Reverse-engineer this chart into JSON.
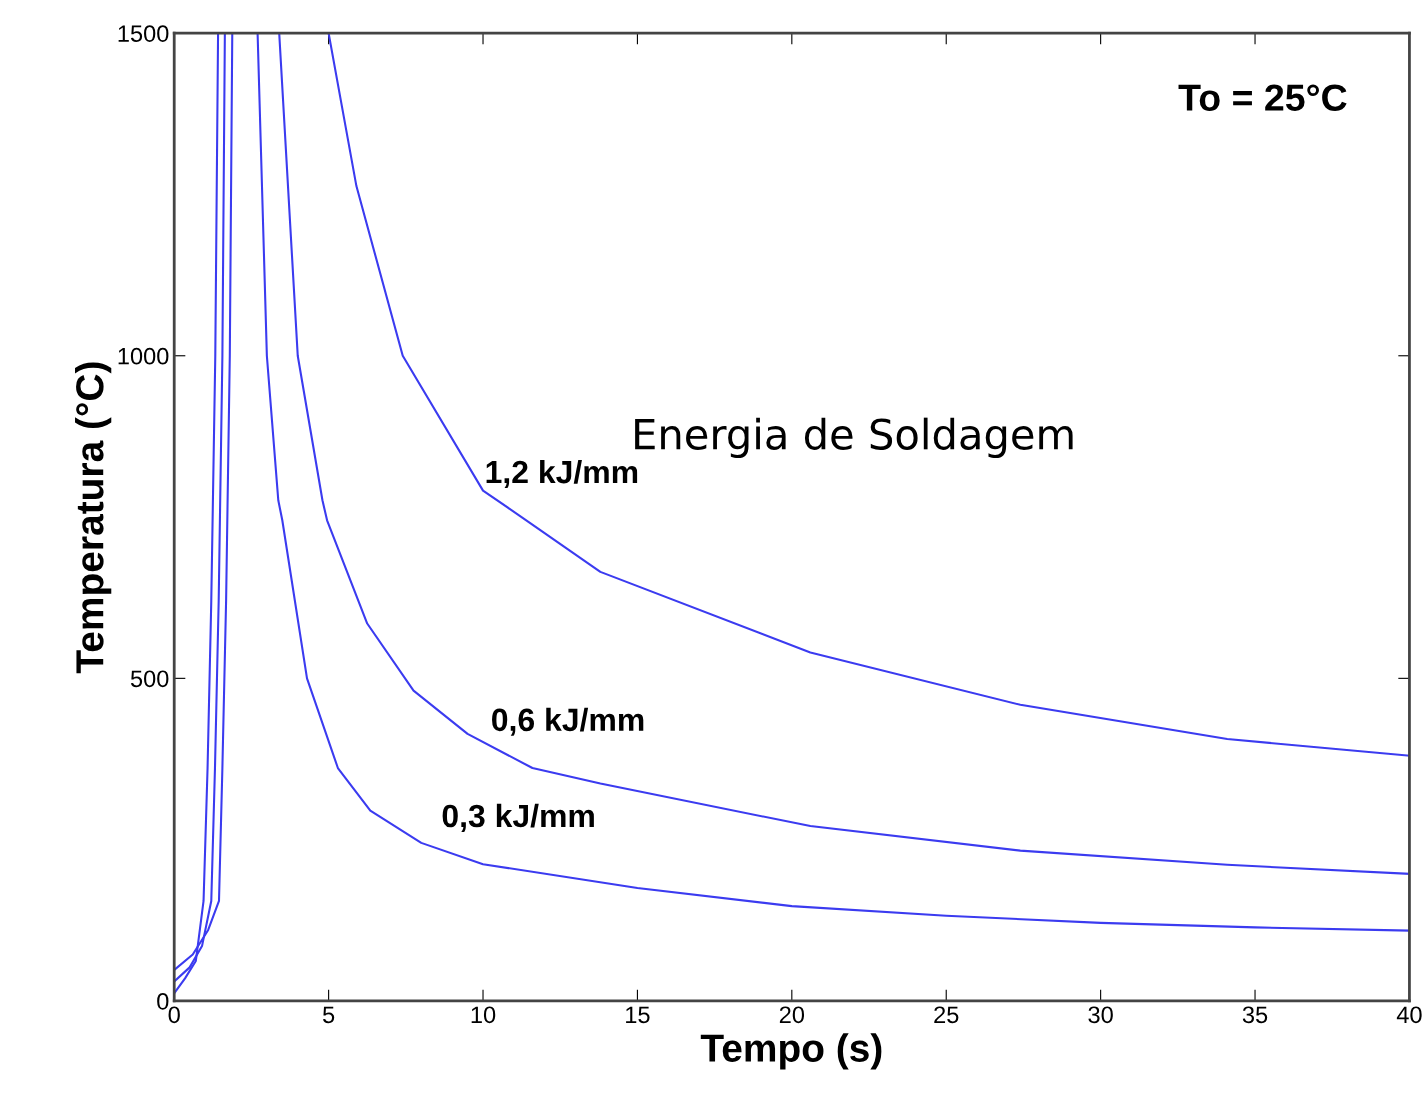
{
  "chart_data": {
    "type": "line",
    "xlabel": "Tempo (s)",
    "ylabel": "Temperatura (°C)",
    "xlim": [
      0,
      40
    ],
    "ylim": [
      0,
      1500
    ],
    "xticks": [
      0,
      5,
      10,
      15,
      20,
      25,
      30,
      35,
      40
    ],
    "yticks": [
      0,
      500,
      1000,
      1500
    ],
    "grid": false,
    "legend": false,
    "marker": "none",
    "line_style": "solid",
    "annotations": [
      "To = 25°C",
      "Energia de Soldagem"
    ],
    "series": [
      {
        "name": "0,3 kJ/mm",
        "color": "#3b3bf0",
        "x": [
          0,
          0.35,
          0.7,
          0.95,
          1.08,
          1.2,
          1.33,
          1.42,
          null,
          2.7,
          3.0,
          3.37,
          3.5,
          4.3,
          5.3,
          6.35,
          8,
          10,
          15,
          20,
          25,
          30,
          35,
          40
        ],
        "values": [
          12,
          35,
          62,
          155,
          361,
          620,
          1000,
          1500,
          null,
          1500,
          1000,
          776,
          745,
          500,
          361,
          295,
          245,
          212,
          175,
          147,
          132,
          121,
          114,
          109
        ]
      },
      {
        "name": "0,6 kJ/mm",
        "color": "#3b3bf0",
        "x": [
          0,
          0.5,
          0.9,
          1.2,
          1.32,
          1.44,
          1.56,
          1.64,
          null,
          3.4,
          4.0,
          4.8,
          4.95,
          6.25,
          7.75,
          9.5,
          11.6,
          13.8,
          20.6,
          27.4,
          34.1,
          40
        ],
        "values": [
          30,
          52,
          85,
          155,
          361,
          620,
          1000,
          1500,
          null,
          1500,
          1000,
          776,
          745,
          585,
          481,
          414,
          361,
          337,
          271,
          233,
          211,
          197
        ]
      },
      {
        "name": "1,2 kJ/mm",
        "color": "#3b3bf0",
        "x": [
          0,
          0.6,
          1.1,
          1.45,
          1.56,
          1.68,
          1.8,
          1.88,
          null,
          5.0,
          5.9,
          7.4,
          10,
          11.4,
          13.8,
          20.6,
          27.4,
          34.1,
          40
        ],
        "values": [
          48,
          72,
          110,
          155,
          361,
          620,
          1000,
          1500,
          null,
          1500,
          1263,
          1000,
          791,
          745,
          665,
          540,
          459,
          406,
          380
        ]
      }
    ]
  }
}
